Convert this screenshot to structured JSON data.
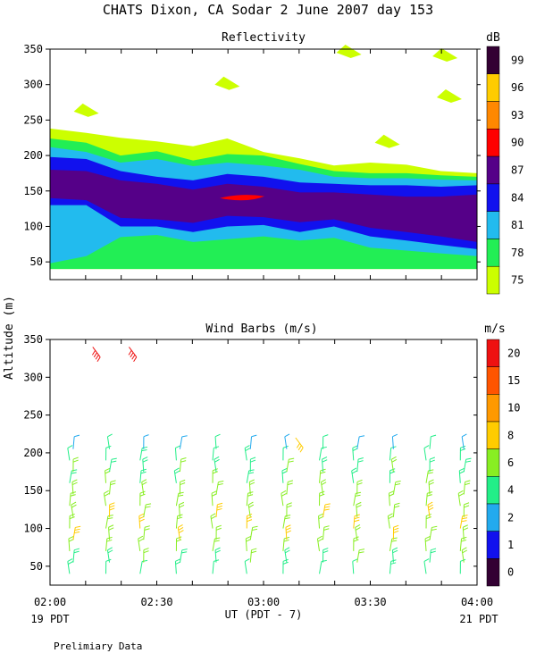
{
  "chart_data": {
    "type": "contour+barbs",
    "title": "CHATS Dixon, CA  Sodar    2 June 2007   day 153",
    "ylabel": "Altitude (m)",
    "xlabel": "UT  (PDT - 7)",
    "x_ticks": [
      "02:00",
      "02:30",
      "03:00",
      "03:30",
      "04:00"
    ],
    "x_range_hours": [
      2.0,
      4.0
    ],
    "left_date_label": "19 PDT",
    "right_date_label": "21 PDT",
    "footer": "Prelimiary Data",
    "reflectivity": {
      "subtitle": "Reflectivity",
      "unit": "dB",
      "ylim": [
        25,
        350
      ],
      "yticks": [
        50,
        100,
        150,
        200,
        250,
        300,
        350
      ],
      "colorbar_ticks": [
        "99",
        "96",
        "93",
        "90",
        "87",
        "84",
        "81",
        "78",
        "75"
      ],
      "levels": [
        75,
        78,
        81,
        84,
        87,
        90,
        93,
        96,
        99
      ],
      "colors": [
        "#ccff00",
        "#22ee55",
        "#22bbee",
        "#1111ee",
        "#550088",
        "#ff0000",
        "#ff8800",
        "#ffcc00",
        "#330033"
      ],
      "layers": [
        {
          "level": 75,
          "t": [
            2.0,
            2.17,
            2.33,
            2.5,
            2.67,
            2.83,
            3.0,
            3.17,
            3.33,
            3.5,
            3.67,
            3.83,
            4.0
          ],
          "bottom": [
            40,
            40,
            40,
            40,
            40,
            40,
            40,
            40,
            40,
            40,
            40,
            40,
            40
          ],
          "top": [
            238,
            232,
            225,
            220,
            213,
            224,
            205,
            196,
            186,
            190,
            187,
            178,
            175
          ]
        },
        {
          "level": 78,
          "t": [
            2.0,
            2.17,
            2.33,
            2.5,
            2.67,
            2.83,
            3.0,
            3.17,
            3.33,
            3.5,
            3.67,
            3.83,
            4.0
          ],
          "bottom": [
            40,
            40,
            40,
            40,
            40,
            40,
            40,
            40,
            40,
            40,
            40,
            40,
            40
          ],
          "top": [
            224,
            218,
            200,
            206,
            193,
            202,
            200,
            188,
            178,
            175,
            175,
            172,
            170
          ]
        },
        {
          "level": 81,
          "t": [
            2.0,
            2.17,
            2.33,
            2.5,
            2.67,
            2.83,
            3.0,
            3.17,
            3.33,
            3.5,
            3.67,
            3.83,
            4.0
          ],
          "bottom": [
            48,
            58,
            85,
            88,
            78,
            82,
            86,
            80,
            84,
            70,
            66,
            62,
            58
          ],
          "top": [
            212,
            205,
            190,
            195,
            185,
            190,
            186,
            180,
            170,
            168,
            168,
            166,
            165
          ]
        },
        {
          "level": 84,
          "t": [
            2.0,
            2.17,
            2.33,
            2.5,
            2.67,
            2.83,
            3.0,
            3.17,
            3.33,
            3.5,
            3.67,
            3.83,
            4.0
          ],
          "bottom": [
            130,
            130,
            100,
            100,
            92,
            100,
            102,
            92,
            100,
            86,
            80,
            74,
            68
          ],
          "top": [
            198,
            195,
            178,
            170,
            165,
            174,
            170,
            162,
            160,
            158,
            158,
            156,
            158
          ]
        },
        {
          "level": 87,
          "t": [
            2.0,
            2.17,
            2.33,
            2.5,
            2.67,
            2.83,
            3.0,
            3.17,
            3.33,
            3.5,
            3.67,
            3.83,
            4.0
          ],
          "bottom": [
            140,
            137,
            112,
            110,
            105,
            115,
            113,
            106,
            110,
            98,
            92,
            86,
            78
          ],
          "top": [
            180,
            178,
            165,
            160,
            152,
            160,
            156,
            148,
            148,
            145,
            142,
            142,
            145
          ]
        }
      ],
      "core90": {
        "t": 2.9,
        "alt": 140
      },
      "blobs75": [
        {
          "t": 2.17,
          "alt": 262
        },
        {
          "t": 2.83,
          "alt": 300
        },
        {
          "t": 3.58,
          "alt": 218
        },
        {
          "t": 3.87,
          "alt": 282
        },
        {
          "t": 3.4,
          "alt": 345
        },
        {
          "t": 3.85,
          "alt": 340
        }
      ]
    },
    "wind_barbs": {
      "subtitle": "Wind Barbs (m/s)",
      "unit": "m/s",
      "ylim": [
        25,
        350
      ],
      "yticks": [
        50,
        100,
        150,
        200,
        250,
        300,
        350
      ],
      "colorbar_ticks": [
        "20",
        "15",
        "10",
        "8",
        "6",
        "4",
        "2",
        "1",
        "0"
      ],
      "levels": [
        0,
        1,
        2,
        4,
        6,
        8,
        10,
        15,
        20
      ],
      "colors": [
        "#330033",
        "#1111ee",
        "#22aaee",
        "#22ee88",
        "#88ee22",
        "#ffcc00",
        "#ff9900",
        "#ff5500",
        "#ee1111"
      ],
      "times": [
        2.1,
        2.27,
        2.43,
        2.6,
        2.77,
        2.93,
        3.1,
        3.27,
        3.43,
        3.6,
        3.77,
        3.93
      ],
      "altitudes": [
        40,
        55,
        70,
        85,
        100,
        115,
        130,
        145,
        160,
        175,
        190,
        205
      ],
      "speed_profile": [
        4,
        5,
        6,
        7,
        7,
        7,
        6,
        6,
        5,
        5,
        4,
        3
      ],
      "upper": [
        {
          "t": 2.2,
          "alt": 340,
          "speed": 20
        },
        {
          "t": 2.37,
          "alt": 340,
          "speed": 20
        },
        {
          "t": 3.15,
          "alt": 220,
          "speed": 9
        }
      ]
    }
  }
}
